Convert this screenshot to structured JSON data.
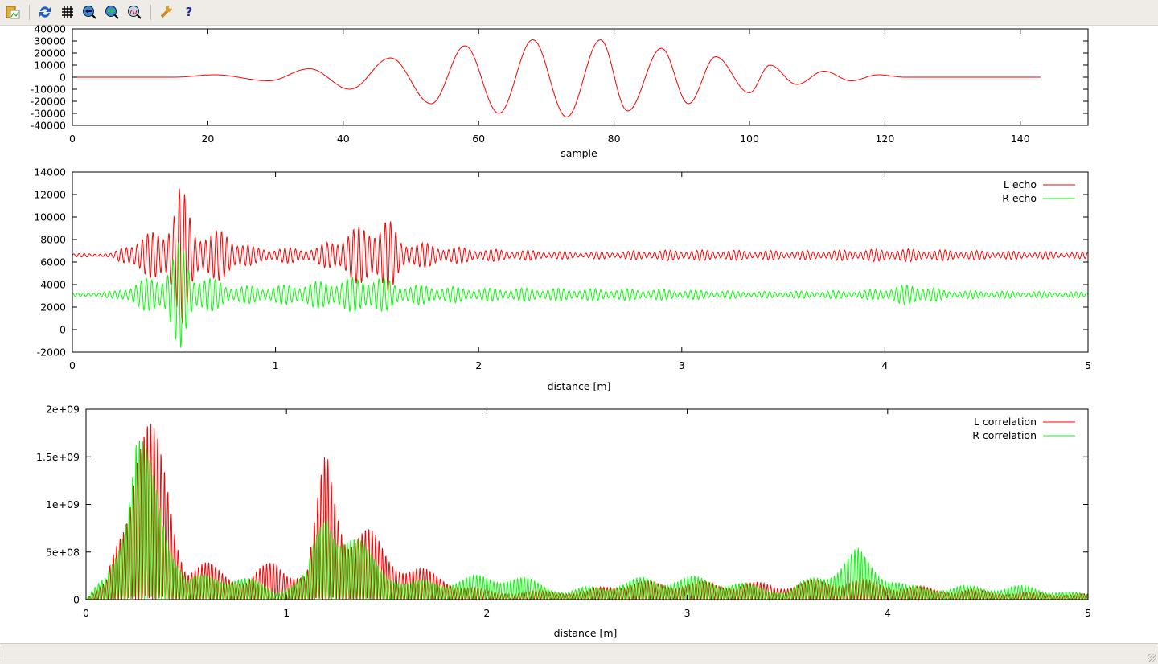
{
  "toolbar": {
    "buttons": [
      {
        "name": "copy-to-clipboard",
        "icon": "clipboard-chart-icon"
      },
      {
        "name": "replot",
        "icon": "refresh-icon"
      },
      {
        "name": "grid",
        "icon": "grid-icon"
      },
      {
        "name": "previous-zoom",
        "icon": "zoom-back-icon"
      },
      {
        "name": "next-zoom",
        "icon": "zoom-forward-icon"
      },
      {
        "name": "autoscale",
        "icon": "zoom-fit-icon"
      },
      {
        "name": "options",
        "icon": "wrench-icon"
      },
      {
        "name": "help",
        "icon": "help-icon",
        "glyph": "?"
      }
    ]
  },
  "colors": {
    "red": "#ff0000",
    "green": "#00ff00",
    "axis": "#000000"
  },
  "chart_data": [
    {
      "type": "line",
      "xlabel": "sample",
      "ylabel": "",
      "xlim": [
        0,
        150
      ],
      "ylim": [
        -40000,
        40000
      ],
      "xticks": [
        0,
        20,
        40,
        60,
        80,
        100,
        120,
        140
      ],
      "yticks": [
        -40000,
        -30000,
        -20000,
        -10000,
        0,
        10000,
        20000,
        30000,
        40000
      ],
      "grid": false,
      "series": [
        {
          "color": "#ff0000",
          "extrema": [
            [
              0,
              0
            ],
            [
              10,
              0
            ],
            [
              15,
              0
            ],
            [
              21,
              2000
            ],
            [
              29,
              -3000
            ],
            [
              35,
              7000
            ],
            [
              41,
              -10000
            ],
            [
              47,
              16000
            ],
            [
              53,
              -22000
            ],
            [
              58,
              26000
            ],
            [
              63,
              -30000
            ],
            [
              68,
              31000
            ],
            [
              73,
              -33000
            ],
            [
              78,
              31000
            ],
            [
              82,
              -28000
            ],
            [
              87,
              24000
            ],
            [
              91,
              -22000
            ],
            [
              95,
              17000
            ],
            [
              100,
              -13000
            ],
            [
              103,
              10000
            ],
            [
              107,
              -6000
            ],
            [
              111,
              5000
            ],
            [
              115,
              -3000
            ],
            [
              119,
              2000
            ],
            [
              123,
              0
            ],
            [
              143,
              0
            ]
          ]
        }
      ]
    },
    {
      "type": "line",
      "xlabel": "distance [m]",
      "ylabel": "",
      "xlim": [
        0,
        5
      ],
      "ylim": [
        -2000,
        14000
      ],
      "xticks": [
        0,
        1,
        2,
        3,
        4,
        5
      ],
      "yticks": [
        -2000,
        0,
        2000,
        4000,
        6000,
        8000,
        10000,
        12000,
        14000
      ],
      "grid": false,
      "legend": "top-right",
      "series": [
        {
          "name": "L echo",
          "color": "#ff0000",
          "baseline": 6600,
          "envelope": [
            [
              0,
              150
            ],
            [
              0.2,
              200
            ],
            [
              0.3,
              1500
            ],
            [
              0.45,
              2500
            ],
            [
              0.53,
              6800
            ],
            [
              0.6,
              2500
            ],
            [
              0.75,
              2200
            ],
            [
              0.9,
              700
            ],
            [
              1.2,
              700
            ],
            [
              1.35,
              2200
            ],
            [
              1.55,
              3500
            ],
            [
              1.62,
              1500
            ],
            [
              1.8,
              900
            ],
            [
              2.0,
              600
            ],
            [
              2.5,
              300
            ],
            [
              3,
              500
            ],
            [
              3.6,
              400
            ],
            [
              4.05,
              600
            ],
            [
              4.5,
              400
            ],
            [
              5,
              300
            ]
          ]
        },
        {
          "name": "R echo",
          "color": "#00ff00",
          "baseline": 3100,
          "envelope": [
            [
              0,
              150
            ],
            [
              0.2,
              300
            ],
            [
              0.35,
              1400
            ],
            [
              0.45,
              2000
            ],
            [
              0.53,
              5000
            ],
            [
              0.6,
              2000
            ],
            [
              0.8,
              800
            ],
            [
              1.0,
              800
            ],
            [
              1.4,
              1600
            ],
            [
              1.5,
              1800
            ],
            [
              1.6,
              1000
            ],
            [
              2.0,
              600
            ],
            [
              2.3,
              600
            ],
            [
              2.9,
              500
            ],
            [
              3.4,
              300
            ],
            [
              3.9,
              400
            ],
            [
              4.15,
              1000
            ],
            [
              4.3,
              400
            ],
            [
              5,
              250
            ]
          ]
        }
      ]
    },
    {
      "type": "line",
      "xlabel": "distance [m]",
      "ylabel": "",
      "xlim": [
        0,
        5
      ],
      "ylim": [
        0,
        2000000000
      ],
      "xticks": [
        0,
        1,
        2,
        3,
        4,
        5
      ],
      "yticks": [
        0,
        500000000,
        1000000000,
        1500000000,
        2000000000
      ],
      "ytick_labels": [
        "0",
        "5e+08",
        "1e+09",
        "1.5e+09",
        "2e+09"
      ],
      "grid": false,
      "legend": "top-right",
      "series": [
        {
          "name": "L correlation",
          "color": "#ff0000",
          "envelope": [
            [
              0,
              0
            ],
            [
              0.1,
              200000000.0
            ],
            [
              0.2,
              1300000000.0
            ],
            [
              0.25,
              2000000000.0
            ],
            [
              0.3,
              2000000000.0
            ],
            [
              0.4,
              1500000000.0
            ],
            [
              0.5,
              400000000.0
            ],
            [
              0.6,
              400000000.0
            ],
            [
              0.8,
              250000000.0
            ],
            [
              0.95,
              450000000.0
            ],
            [
              1.1,
              300000000.0
            ],
            [
              1.2,
              1700000000.0
            ],
            [
              1.3,
              900000000.0
            ],
            [
              1.4,
              800000000.0
            ],
            [
              1.5,
              550000000.0
            ],
            [
              1.72,
              300000000.0
            ],
            [
              2,
              100000000.0
            ],
            [
              2.5,
              100000000.0
            ],
            [
              2.65,
              200000000.0
            ],
            [
              3,
              200000000.0
            ],
            [
              3.5,
              180000000.0
            ],
            [
              3.8,
              250000000.0
            ],
            [
              4.1,
              150000000.0
            ],
            [
              4.5,
              100000000.0
            ],
            [
              5,
              60000000.0
            ]
          ]
        },
        {
          "name": "R correlation",
          "color": "#00ff00",
          "envelope": [
            [
              0,
              0
            ],
            [
              0.1,
              300000000.0
            ],
            [
              0.2,
              1200000000.0
            ],
            [
              0.25,
              1850000000.0
            ],
            [
              0.35,
              1350000000.0
            ],
            [
              0.5,
              250000000.0
            ],
            [
              0.75,
              300000000.0
            ],
            [
              0.95,
              100000000.0
            ],
            [
              1.1,
              300000000.0
            ],
            [
              1.2,
              1150000000.0
            ],
            [
              1.4,
              550000000.0
            ],
            [
              1.6,
              200000000.0
            ],
            [
              1.9,
              250000000.0
            ],
            [
              2.1,
              300000000.0
            ],
            [
              2.4,
              100000000.0
            ],
            [
              2.8,
              250000000.0
            ],
            [
              3.1,
              250000000.0
            ],
            [
              3.5,
              100000000.0
            ],
            [
              3.85,
              550000000.0
            ],
            [
              4.1,
              150000000.0
            ],
            [
              4.7,
              150000000.0
            ],
            [
              5,
              60000000.0
            ]
          ]
        }
      ]
    }
  ]
}
